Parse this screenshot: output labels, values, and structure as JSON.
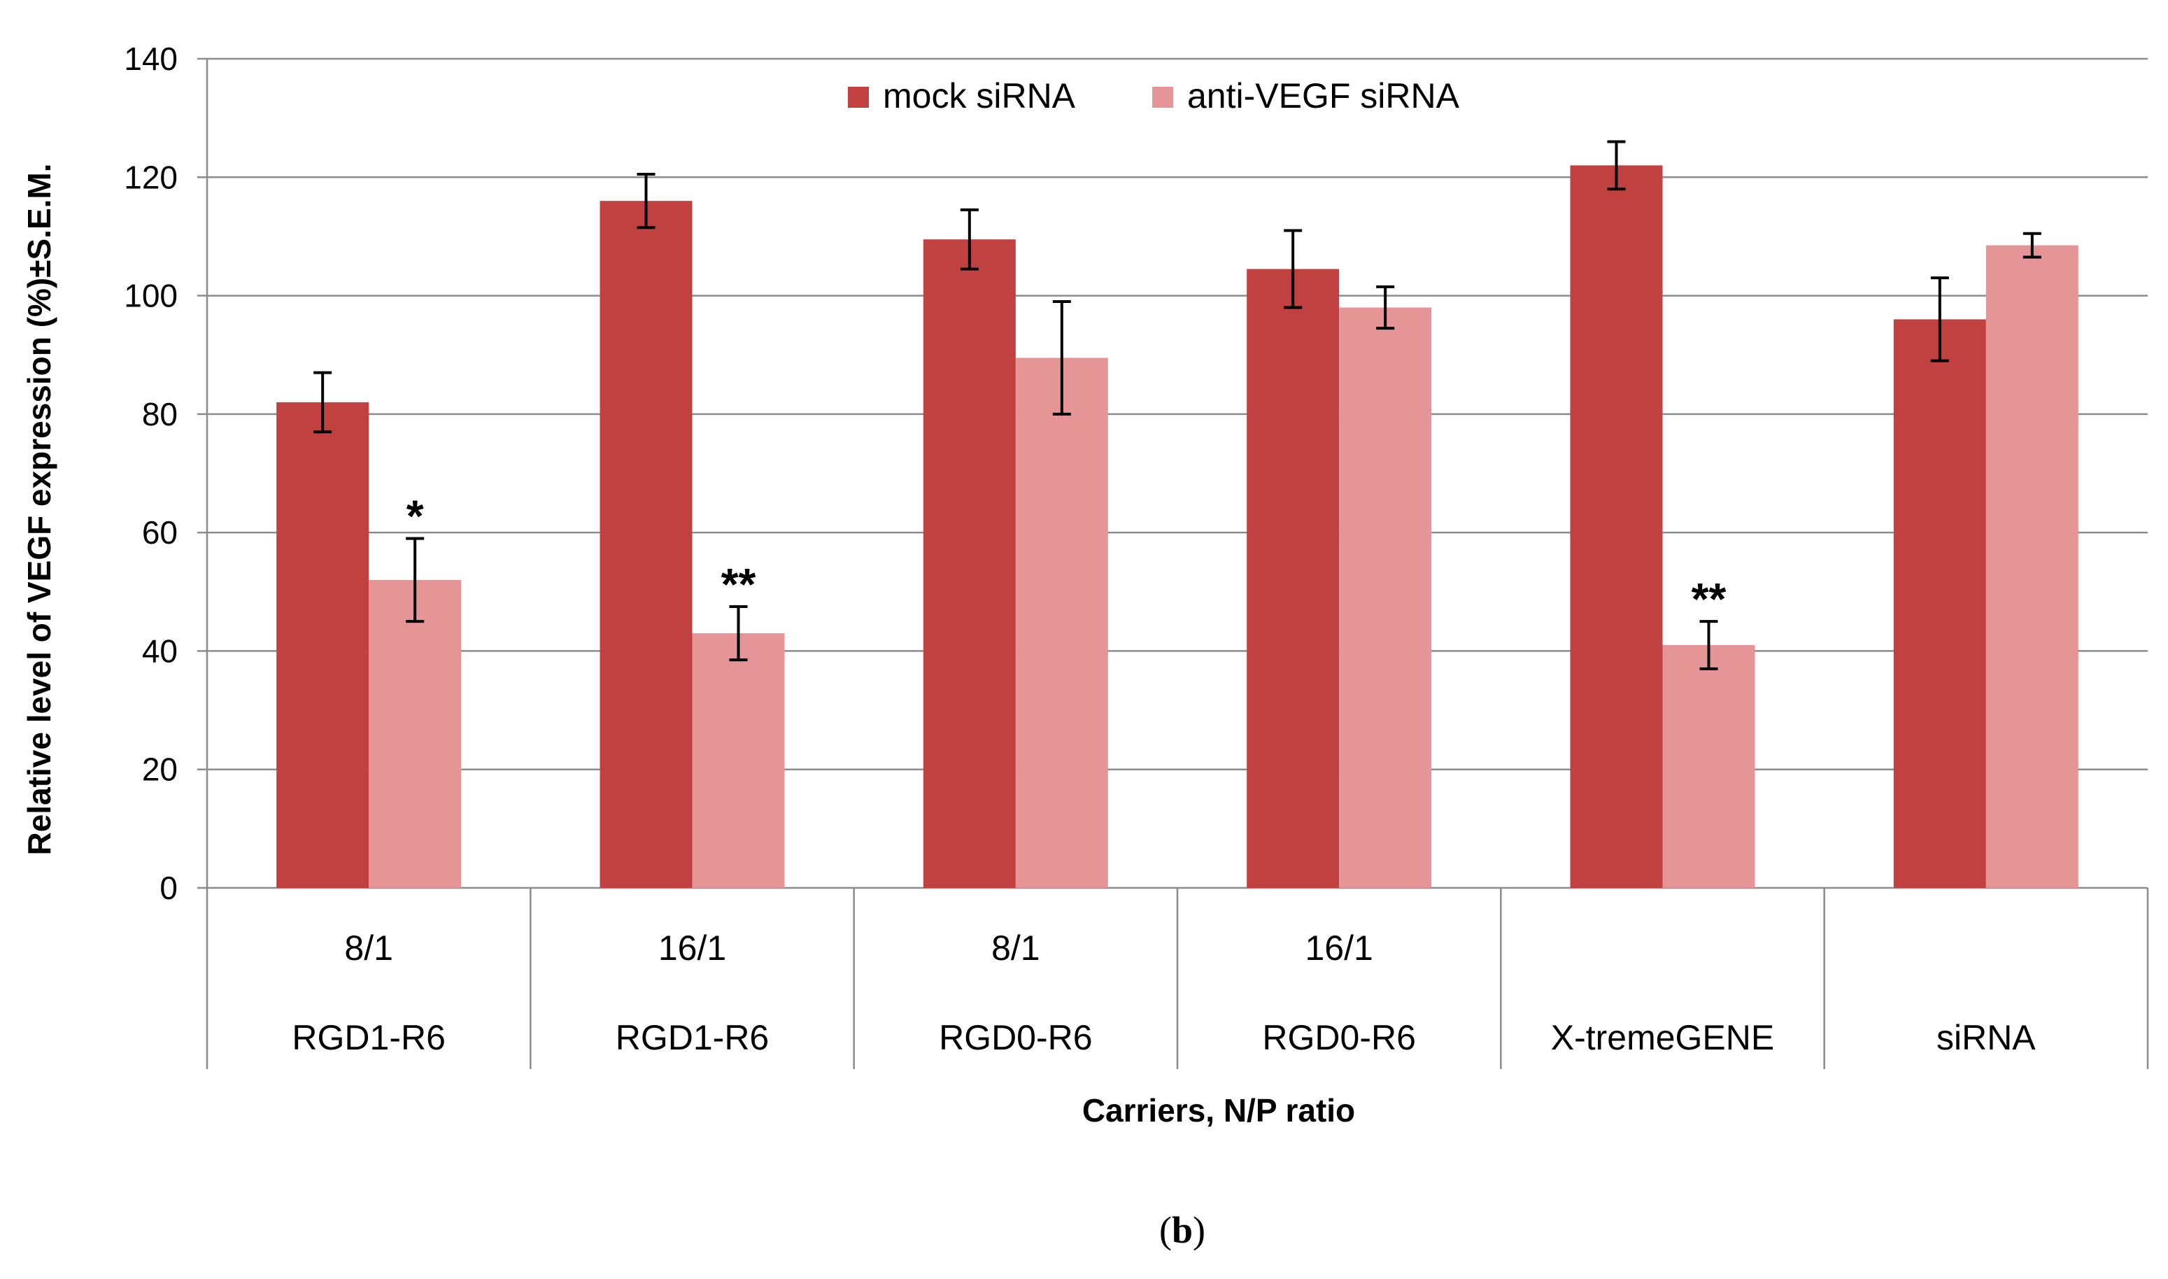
{
  "figure_label": "(b)",
  "figure_label_parts": {
    "open": "(",
    "letter": "b",
    "close": ")"
  },
  "chart_data": {
    "type": "bar",
    "title": "",
    "xlabel": "Carriers, N/P ratio",
    "ylabel": "Relative level of VEGF expression (%)±S.E.M.",
    "ylim": [
      0,
      140
    ],
    "yticks": [
      0,
      20,
      40,
      60,
      80,
      100,
      120,
      140
    ],
    "grid": true,
    "legend_position": "top-center",
    "categories": [
      {
        "ratio": "8/1",
        "carrier": "RGD1-R6"
      },
      {
        "ratio": "16/1",
        "carrier": "RGD1-R6"
      },
      {
        "ratio": "8/1",
        "carrier": "RGD0-R6"
      },
      {
        "ratio": "16/1",
        "carrier": "RGD0-R6"
      },
      {
        "ratio": "",
        "carrier": "X-tremeGENE"
      },
      {
        "ratio": "",
        "carrier": "siRNA"
      }
    ],
    "series": [
      {
        "name": "mock siRNA",
        "color": "#c0413f",
        "values": [
          82,
          116,
          109.5,
          104.5,
          122,
          96
        ],
        "errors": [
          5,
          4.5,
          5,
          6.5,
          4,
          7
        ],
        "annotations": [
          "",
          "",
          "",
          "",
          "",
          ""
        ]
      },
      {
        "name": "anti-VEGF siRNA",
        "color": "#e69596",
        "values": [
          52,
          43,
          89.5,
          98,
          41,
          108.5
        ],
        "errors": [
          7,
          4.5,
          9.5,
          3.5,
          4,
          2
        ],
        "annotations": [
          "*",
          "**",
          "",
          "",
          "**",
          ""
        ]
      }
    ]
  }
}
